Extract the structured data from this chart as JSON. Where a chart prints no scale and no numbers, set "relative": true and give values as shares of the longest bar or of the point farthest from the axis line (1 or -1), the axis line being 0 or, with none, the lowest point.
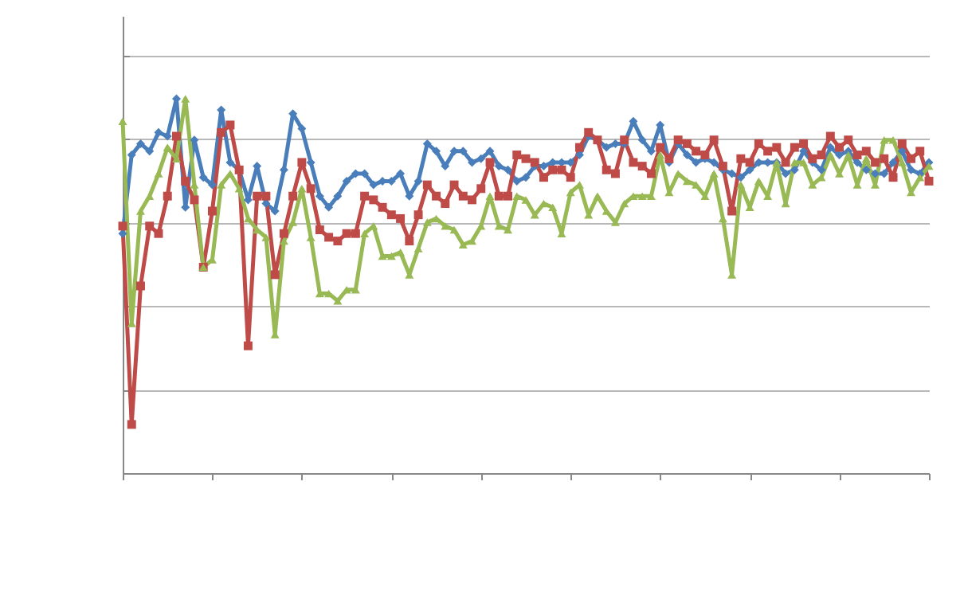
{
  "chart_data": {
    "type": "line",
    "relative": true,
    "grid": "y",
    "line_style": "solid",
    "categories": [
      null,
      null,
      null,
      null,
      null,
      null,
      null,
      null,
      null,
      null,
      null,
      null,
      null,
      null,
      null,
      null,
      null,
      null,
      null,
      null,
      null,
      null,
      null,
      null,
      null,
      null,
      null,
      null,
      null,
      null,
      null,
      null,
      null,
      null,
      null,
      null,
      null,
      null,
      null,
      null,
      null,
      null,
      null,
      null,
      null,
      null,
      null,
      null,
      null,
      null,
      null,
      null,
      null,
      null,
      null,
      null,
      null,
      null,
      null,
      null,
      null,
      null,
      null,
      null,
      null,
      null,
      null,
      null,
      null,
      null,
      null,
      null,
      null,
      null,
      null,
      null,
      null,
      null,
      null,
      null,
      null,
      null,
      null,
      null,
      null,
      null,
      null,
      null,
      null,
      null,
      null
    ],
    "series": [
      {
        "color": "#4a7ebb",
        "marker": "diamond",
        "values": [
          0.64,
          0.85,
          0.88,
          0.86,
          0.91,
          0.9,
          1.0,
          0.71,
          0.89,
          0.79,
          0.77,
          0.97,
          0.83,
          0.81,
          0.73,
          0.82,
          0.72,
          0.7,
          0.81,
          0.96,
          0.92,
          0.83,
          0.74,
          0.71,
          0.74,
          0.78,
          0.8,
          0.8,
          0.77,
          0.78,
          0.78,
          0.8,
          0.74,
          0.78,
          0.88,
          0.86,
          0.82,
          0.86,
          0.86,
          0.83,
          0.84,
          0.86,
          0.82,
          0.81,
          0.78,
          0.79,
          0.82,
          0.82,
          0.83,
          0.83,
          0.83,
          0.85,
          0.9,
          0.89,
          0.87,
          0.88,
          0.88,
          0.94,
          0.89,
          0.86,
          0.93,
          0.83,
          0.88,
          0.85,
          0.83,
          0.84,
          0.83,
          0.81,
          0.8,
          0.79,
          0.81,
          0.83,
          0.83,
          0.83,
          0.8,
          0.81,
          0.86,
          0.83,
          0.81,
          0.87,
          0.85,
          0.86,
          0.83,
          0.81,
          0.8,
          0.8,
          0.83,
          0.86,
          0.81,
          0.8,
          0.83
        ]
      },
      {
        "color": "#be4b48",
        "marker": "square",
        "values": [
          0.66,
          0.13,
          0.5,
          0.66,
          0.64,
          0.74,
          0.9,
          0.78,
          0.73,
          0.55,
          0.7,
          0.91,
          0.93,
          0.81,
          0.34,
          0.74,
          0.74,
          0.53,
          0.64,
          0.74,
          0.83,
          0.76,
          0.65,
          0.63,
          0.62,
          0.64,
          0.64,
          0.74,
          0.73,
          0.71,
          0.69,
          0.68,
          0.62,
          0.69,
          0.77,
          0.74,
          0.72,
          0.77,
          0.74,
          0.73,
          0.76,
          0.83,
          0.74,
          0.74,
          0.85,
          0.84,
          0.83,
          0.79,
          0.81,
          0.81,
          0.79,
          0.87,
          0.91,
          0.89,
          0.81,
          0.8,
          0.89,
          0.83,
          0.82,
          0.8,
          0.87,
          0.84,
          0.89,
          0.88,
          0.86,
          0.85,
          0.89,
          0.82,
          0.7,
          0.84,
          0.83,
          0.88,
          0.86,
          0.87,
          0.83,
          0.87,
          0.88,
          0.84,
          0.85,
          0.9,
          0.87,
          0.89,
          0.85,
          0.86,
          0.83,
          0.84,
          0.79,
          0.88,
          0.84,
          0.86,
          0.78
        ]
      },
      {
        "color": "#98b954",
        "marker": "triangle",
        "values": [
          0.94,
          0.4,
          0.7,
          0.74,
          0.8,
          0.87,
          0.84,
          1.0,
          0.77,
          0.55,
          0.57,
          0.77,
          0.8,
          0.76,
          0.68,
          0.65,
          0.63,
          0.37,
          0.62,
          0.67,
          0.76,
          0.63,
          0.48,
          0.48,
          0.46,
          0.49,
          0.49,
          0.64,
          0.66,
          0.58,
          0.58,
          0.59,
          0.53,
          0.6,
          0.67,
          0.68,
          0.66,
          0.65,
          0.61,
          0.62,
          0.66,
          0.74,
          0.66,
          0.65,
          0.74,
          0.73,
          0.69,
          0.72,
          0.71,
          0.64,
          0.75,
          0.77,
          0.69,
          0.74,
          0.7,
          0.67,
          0.72,
          0.74,
          0.74,
          0.74,
          0.85,
          0.75,
          0.8,
          0.78,
          0.77,
          0.74,
          0.8,
          0.68,
          0.53,
          0.77,
          0.71,
          0.78,
          0.74,
          0.83,
          0.72,
          0.83,
          0.83,
          0.77,
          0.79,
          0.85,
          0.8,
          0.85,
          0.77,
          0.84,
          0.77,
          0.89,
          0.89,
          0.83,
          0.75,
          0.79,
          0.82
        ]
      }
    ]
  }
}
